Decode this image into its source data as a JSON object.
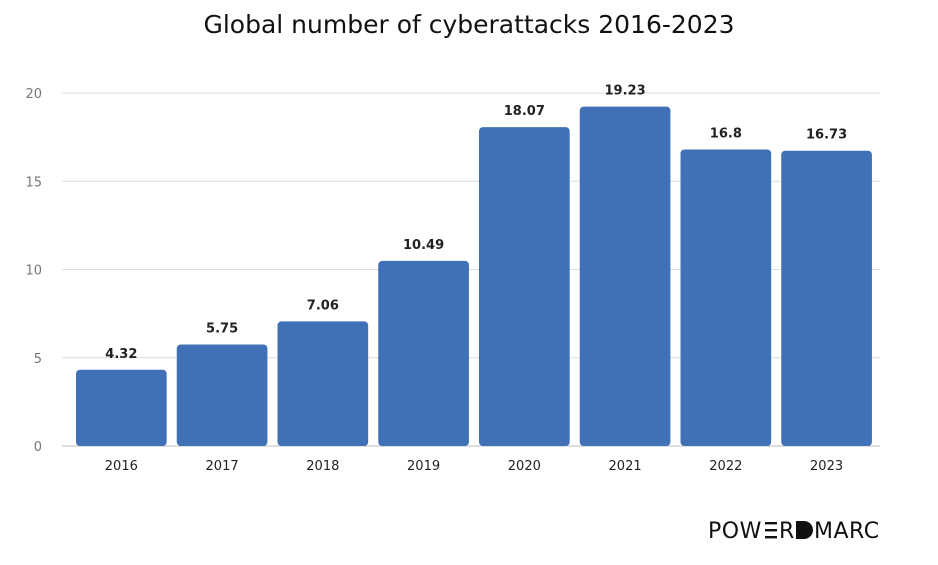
{
  "chart_data": {
    "type": "bar",
    "title": "Global number of cyberattacks 2016-2023",
    "xlabel": "",
    "ylabel": "",
    "categories": [
      "2016",
      "2017",
      "2018",
      "2019",
      "2020",
      "2021",
      "2022",
      "2023"
    ],
    "values": [
      4.32,
      5.75,
      7.06,
      10.49,
      18.07,
      19.23,
      16.8,
      16.73
    ],
    "value_labels": [
      "4.32",
      "5.75",
      "7.06",
      "10.49",
      "18.07",
      "19.23",
      "16.8",
      "16.73"
    ],
    "ylim": [
      0,
      20
    ],
    "yticks": [
      0,
      5,
      10,
      15,
      20
    ],
    "grid": true,
    "legend": "none",
    "bar_color": "#4070b6"
  },
  "brand": {
    "logo_text": "POWERDMARC"
  }
}
